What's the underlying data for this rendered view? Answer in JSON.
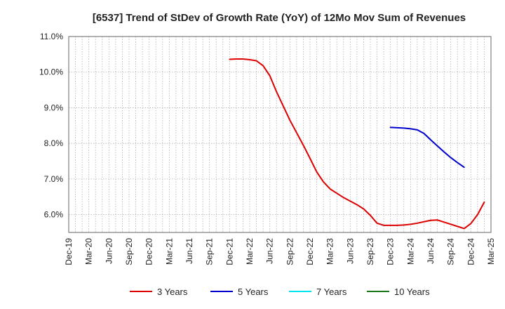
{
  "chart_data": {
    "type": "line",
    "title": "[6537]  Trend of StDev of Growth Rate (YoY) of 12Mo Mov Sum of Revenues",
    "xlabel": "",
    "ylabel": "",
    "ylim": [
      5.5,
      11.0
    ],
    "yticks": [
      6.0,
      7.0,
      8.0,
      9.0,
      10.0,
      11.0
    ],
    "ytick_labels": [
      "6.0%",
      "7.0%",
      "8.0%",
      "9.0%",
      "10.0%",
      "11.0%"
    ],
    "x_start": "2019-12",
    "x_months": 63,
    "xtick_labels": [
      "Dec-19",
      "Mar-20",
      "Jun-20",
      "Sep-20",
      "Dec-20",
      "Mar-21",
      "Jun-21",
      "Sep-21",
      "Dec-21",
      "Mar-22",
      "Jun-22",
      "Sep-22",
      "Dec-22",
      "Mar-23",
      "Jun-23",
      "Sep-23",
      "Dec-23",
      "Mar-24",
      "Jun-24",
      "Sep-24",
      "Dec-24",
      "Mar-25"
    ],
    "grid": true,
    "legend_position": "bottom",
    "series": [
      {
        "name": "3 Years",
        "color": "#dd0000",
        "start_index": 24,
        "values": [
          10.36,
          10.37,
          10.37,
          10.35,
          10.32,
          10.18,
          9.9,
          9.45,
          9.05,
          8.65,
          8.3,
          7.95,
          7.58,
          7.2,
          6.92,
          6.72,
          6.6,
          6.48,
          6.38,
          6.28,
          6.16,
          5.98,
          5.76,
          5.7,
          5.7,
          5.7,
          5.71,
          5.73,
          5.76,
          5.8,
          5.84,
          5.85,
          5.79,
          5.73,
          5.67,
          5.61,
          5.75,
          6.0,
          6.35
        ]
      },
      {
        "name": "5 Years",
        "color": "#0000cc",
        "start_index": 48,
        "values": [
          8.45,
          8.44,
          8.43,
          8.41,
          8.38,
          8.28,
          8.1,
          7.93,
          7.76,
          7.6,
          7.46,
          7.33
        ]
      },
      {
        "name": "7 Years",
        "color": "#00e5ee",
        "start_index": 0,
        "values": []
      },
      {
        "name": "10 Years",
        "color": "#1a7a1a",
        "start_index": 0,
        "values": []
      }
    ]
  }
}
